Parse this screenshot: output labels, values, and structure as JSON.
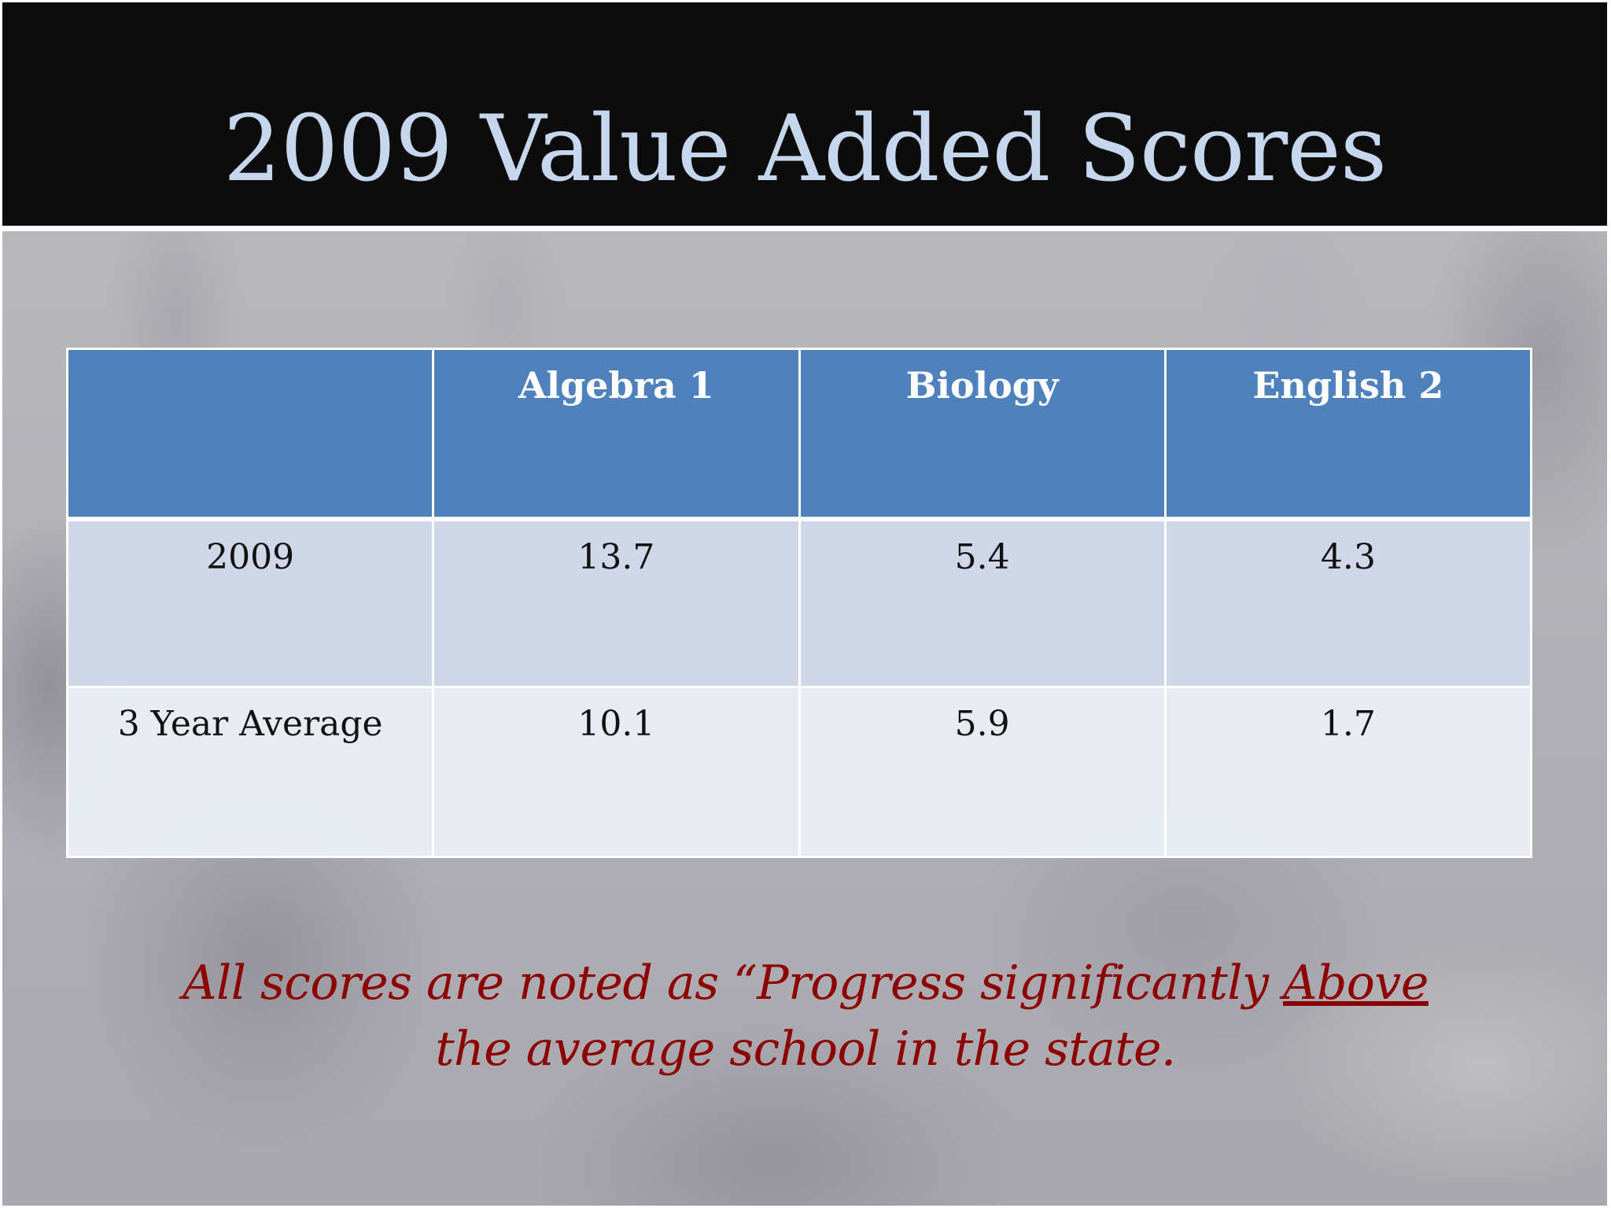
{
  "slide": {
    "title": "2009 Value Added Scores",
    "table": {
      "headers": [
        "",
        "Algebra 1",
        "Biology",
        "English 2"
      ],
      "rows": [
        {
          "label": "2009",
          "values": [
            "13.7",
            "5.4",
            "4.3"
          ]
        },
        {
          "label": "3 Year Average",
          "values": [
            "10.1",
            "5.9",
            "1.7"
          ]
        }
      ]
    },
    "note": {
      "line1_before": "All scores are noted as “Progress significantly ",
      "line1_emphasis": "Above",
      "line2": "the average school in the state."
    }
  },
  "colors": {
    "title_band": "#0c0c0d",
    "title_text": "#c6d6ec",
    "header_fill": "#4f81bd",
    "row_odd_fill": "#d0d8e9",
    "row_even_fill": "#e9edf4",
    "note_text": "#8d0000"
  }
}
